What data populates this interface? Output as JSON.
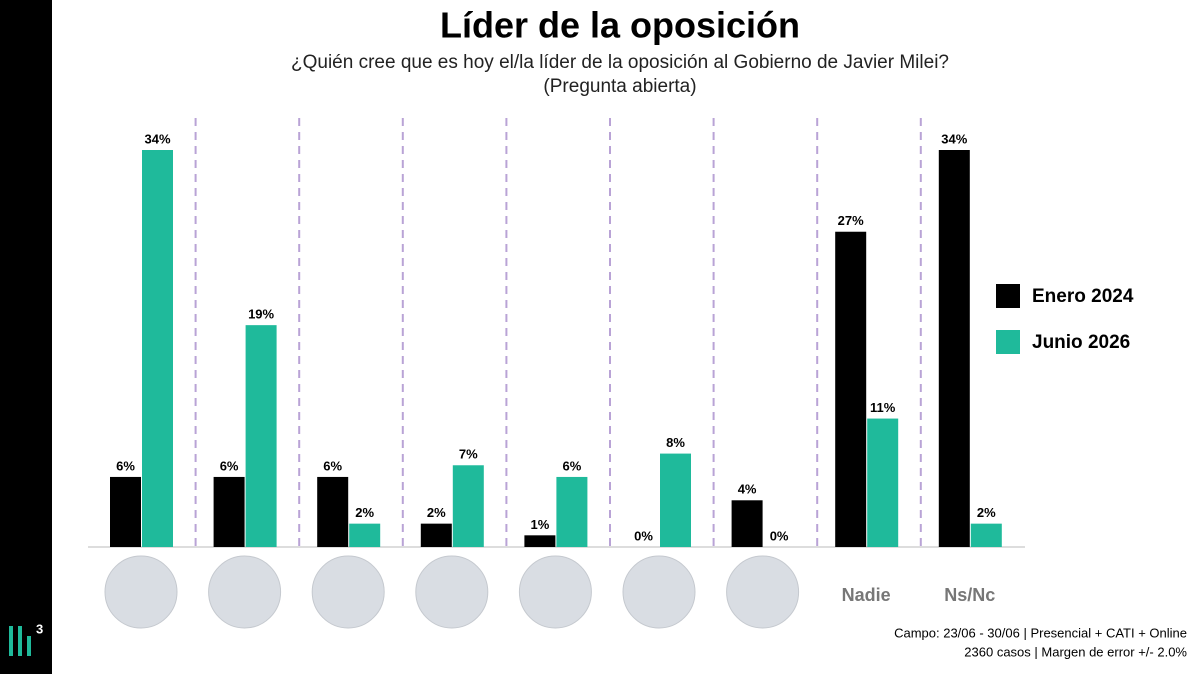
{
  "chart_data": {
    "type": "bar",
    "title": "Líder de la oposición",
    "subtitle": [
      "¿Quién cree que es hoy el/la líder de la oposición al Gobierno de Javier Milei?",
      "(Pregunta abierta)"
    ],
    "categories": [
      null,
      null,
      null,
      null,
      null,
      null,
      null,
      "Nadie",
      "Ns/Nc"
    ],
    "series": [
      {
        "name": "Enero 2024",
        "color": "#000000",
        "values": [
          6,
          6,
          6,
          2,
          1,
          0,
          4,
          27,
          34
        ],
        "value_labels": [
          "6%",
          "6%",
          "6%",
          "2%",
          "1%",
          "0%",
          "4%",
          "27%",
          "34%"
        ]
      },
      {
        "name": "Junio 2026",
        "color": "#1fba9b",
        "values": [
          34,
          19,
          2,
          7,
          6,
          8,
          0,
          11,
          2
        ],
        "value_labels": [
          "34%",
          "19%",
          "2%",
          "7%",
          "6%",
          "8%",
          "0%",
          "11%",
          "2%"
        ]
      }
    ],
    "legend": "right",
    "notes": [
      "Campo: 23/06 - 30/06 | Presencial + CATI +  Online",
      "2360 casos | Margen de error +/- 2.0%"
    ],
    "logo": "3"
  }
}
